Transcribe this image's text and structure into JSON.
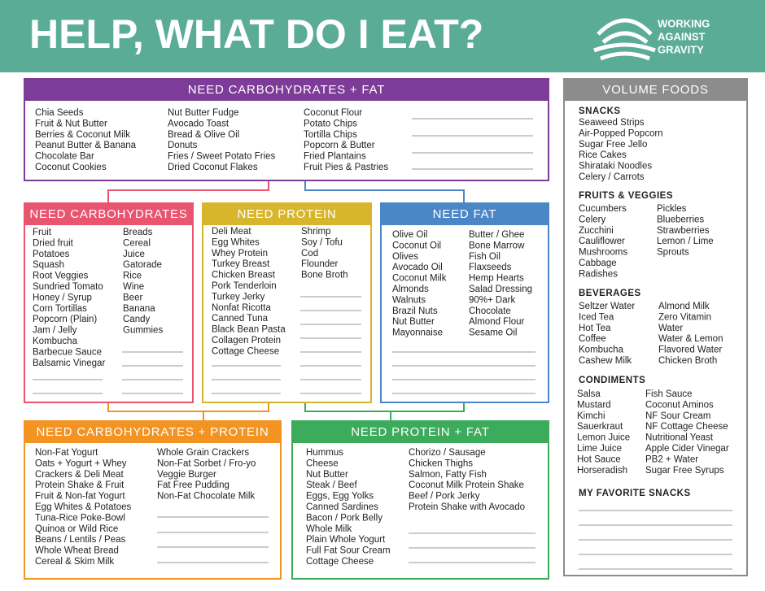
{
  "header": {
    "title": "HELP, WHAT DO I EAT?",
    "brand": [
      "WORKING",
      "AGAINST",
      "GRAVITY"
    ]
  },
  "sections": [
    {
      "title": "NEED CARBOHYDRATES + FAT",
      "columns": [
        [
          "Chia Seeds",
          "Fruit & Nut Butter",
          "Berries & Coconut Milk",
          "Peanut Butter & Banana",
          "Chocolate Bar",
          "Coconut Cookies"
        ],
        [
          "Nut Butter Fudge",
          "Avocado Toast",
          "Bread & Olive Oil",
          "Donuts",
          "Fries / Sweet Potato Fries",
          "Dried Coconut Flakes"
        ],
        [
          "Coconut Flour",
          "Potato Chips",
          "Tortilla Chips",
          "Popcorn & Butter",
          "Fried Plantains",
          "Fruit Pies & Pastries"
        ]
      ]
    },
    {
      "title": "NEED CARBOHYDRATES",
      "columns": [
        [
          "Fruit",
          "Dried fruit",
          "Potatoes",
          "Squash",
          "Root Veggies",
          "Sundried Tomato",
          "Honey / Syrup",
          "Corn Tortillas",
          "Popcorn (Plain)",
          "Jam / Jelly",
          "Kombucha",
          "Barbecue Sauce",
          "Balsamic Vinegar"
        ],
        [
          "Breads",
          "Cereal",
          "Juice",
          "Gatorade",
          "Rice",
          "Wine",
          "Beer",
          "Banana",
          "Candy",
          "Gummies"
        ]
      ]
    },
    {
      "title": "NEED PROTEIN",
      "columns": [
        [
          "Deli Meat",
          "Egg Whites",
          "Whey Protein",
          "Turkey Breast",
          "Chicken Breast",
          "Pork Tenderloin",
          "Turkey Jerky",
          "Nonfat Ricotta",
          "Canned Tuna",
          "Black Bean Pasta",
          "Collagen Protein",
          "Cottage Cheese"
        ],
        [
          "Shrimp",
          "Soy / Tofu",
          "Cod",
          "Flounder",
          "Bone Broth"
        ]
      ]
    },
    {
      "title": "NEED FAT",
      "columns": [
        [
          "Olive Oil",
          "Coconut Oil",
          "Olives",
          "Avocado Oil",
          "Coconut Milk",
          "Almonds",
          "Walnuts",
          "Brazil Nuts",
          "Nut Butter",
          "Mayonnaise"
        ],
        [
          "Butter / Ghee",
          "Bone Marrow",
          "Fish Oil",
          "Flaxseeds",
          "Hemp Hearts",
          "Salad Dressing",
          "90%+ Dark",
          "Chocolate",
          "Almond Flour",
          "Sesame Oil"
        ]
      ]
    },
    {
      "title": "NEED CARBOHYDRATES + PROTEIN",
      "columns": [
        [
          "Non-Fat Yogurt",
          "Oats + Yogurt + Whey",
          "Crackers & Deli Meat",
          "Protein Shake & Fruit",
          "Fruit & Non-fat Yogurt",
          "Egg Whites & Potatoes",
          "Tuna-Rice Poke-Bowl",
          "Quinoa or Wild Rice",
          "Beans / Lentils / Peas",
          "Whole Wheat Bread",
          "Cereal & Skim Milk"
        ],
        [
          "Whole Grain Crackers",
          "Non-Fat Sorbet / Fro-yo",
          "Veggie Burger",
          "Fat Free Pudding",
          "Non-Fat Chocolate Milk"
        ]
      ]
    },
    {
      "title": "NEED PROTEIN + FAT",
      "columns": [
        [
          "Hummus",
          "Cheese",
          "Nut Butter",
          "Steak / Beef",
          "Eggs, Egg Yolks",
          "Canned Sardines",
          "Bacon / Pork Belly",
          "Whole Milk",
          "Plain Whole Yogurt",
          "Full Fat Sour Cream",
          "Cottage Cheese"
        ],
        [
          "Chorizo / Sausage",
          "Chicken Thighs",
          "Salmon, Fatty Fish",
          "Coconut Milk Protein Shake",
          "Beef / Pork Jerky",
          "Protein Shake with Avocado"
        ]
      ]
    }
  ],
  "volume_foods": {
    "title": "VOLUME FOODS",
    "groups": [
      {
        "heading": "SNACKS",
        "columns": [
          [
            "Seaweed Strips",
            "Air-Popped Popcorn",
            "Sugar Free Jello",
            "Rice Cakes",
            "Shirataki Noodles",
            "Celery / Carrots"
          ]
        ]
      },
      {
        "heading": "FRUITS & VEGGIES",
        "columns": [
          [
            "Cucumbers",
            "Celery",
            "Zucchini",
            "Cauliflower",
            "Mushrooms",
            "Cabbage",
            "Radishes"
          ],
          [
            "Pickles",
            "Blueberries",
            "Strawberries",
            "Lemon / Lime",
            "Sprouts"
          ]
        ]
      },
      {
        "heading": "BEVERAGES",
        "columns": [
          [
            "Seltzer Water",
            "Iced Tea",
            "Hot Tea",
            "Coffee",
            "Kombucha",
            "Cashew Milk"
          ],
          [
            "Almond Milk",
            "Zero Vitamin",
            "Water",
            "Water & Lemon",
            "Flavored Water",
            "Chicken Broth"
          ]
        ]
      },
      {
        "heading": "CONDIMENTS",
        "columns": [
          [
            "Salsa",
            "Mustard",
            "Kimchi",
            "Sauerkraut",
            "Lemon Juice",
            "Lime Juice",
            "Hot Sauce",
            "Horseradish"
          ],
          [
            "Fish Sauce",
            "Coconut Aminos",
            "NF Sour Cream",
            "NF Cottage Cheese",
            "Nutritional Yeast",
            "Apple Cider Vinegar",
            "PB2 + Water",
            "Sugar Free Syrups"
          ]
        ]
      },
      {
        "heading": "MY FAVORITE SNACKS"
      }
    ]
  }
}
